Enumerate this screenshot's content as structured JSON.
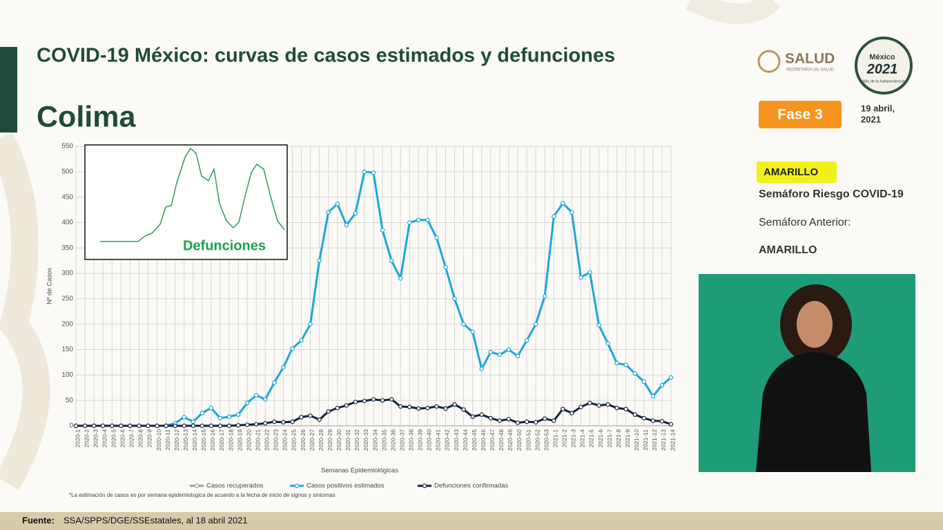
{
  "header": {
    "title": "COVID-19 México: curvas de casos estimados y defunciones",
    "state": "Colima",
    "logo_text": "SALUD",
    "logo_subtext": "SECRETARÍA DE SALUD",
    "emblem_top": "México",
    "emblem_year": "2021",
    "emblem_bottom": "Año de la Independencia"
  },
  "status": {
    "phase": "Fase 3",
    "date_line1": "19 abril,",
    "date_line2": "2021",
    "current": "AMARILLO",
    "current_label": "Semáforo Riesgo COVID-19",
    "previous_label": "Semáforo Anterior:",
    "previous": "AMARILLO"
  },
  "chart_data": {
    "type": "line",
    "x_label": "Semanas Epidemiológicas",
    "y_label": "Nº de Casos",
    "inset_title": "Defunciones",
    "footnote": "*La estimación de casos es por semana epidemiologica de acuerdo a la fecha de inicio de signos y síntomas",
    "categories": [
      "2020-1",
      "2020-2",
      "2020-3",
      "2020-4",
      "2020-5",
      "2020-6",
      "2020-7",
      "2020-8",
      "2020-9",
      "2020-10",
      "2020-11",
      "2020-12",
      "2020-13",
      "2020-14",
      "2020-15",
      "2020-16",
      "2020-17",
      "2020-18",
      "2020-19",
      "2020-20",
      "2020-21",
      "2020-22",
      "2020-23",
      "2020-24",
      "2020-25",
      "2020-26",
      "2020-27",
      "2020-28",
      "2020-29",
      "2020-30",
      "2020-31",
      "2020-32",
      "2020-33",
      "2020-34",
      "2020-35",
      "2020-36",
      "2020-37",
      "2020-38",
      "2020-39",
      "2020-40",
      "2020-41",
      "2020-42",
      "2020-43",
      "2020-44",
      "2020-45",
      "2020-46",
      "2020-47",
      "2020-48",
      "2020-49",
      "2020-50",
      "2020-51",
      "2020-52",
      "2020-53",
      "2021-1",
      "2021-2",
      "2021-3",
      "2021-4",
      "2021-5",
      "2021-6",
      "2021-7",
      "2021-8",
      "2021-9",
      "2021-10",
      "2021-11",
      "2021-12",
      "2021-13",
      "2021-14"
    ],
    "series": [
      {
        "name": "Casos recuperados",
        "color": "#9e9e9e",
        "values": [
          null,
          null,
          null,
          null,
          null,
          null,
          null,
          null,
          null,
          null,
          null,
          null,
          null,
          null,
          null,
          null,
          null,
          null,
          null,
          null,
          null,
          null,
          null,
          null,
          null,
          null,
          null,
          null,
          null,
          null,
          null,
          null,
          null,
          null,
          null,
          null,
          null,
          null,
          null,
          null,
          null,
          null,
          null,
          null,
          null,
          null,
          null,
          null,
          null,
          null,
          null,
          null,
          null,
          null,
          null,
          null,
          null,
          null,
          null,
          null,
          null,
          null,
          null,
          null,
          null,
          null,
          null
        ]
      },
      {
        "name": "Casos positivos estimados",
        "color": "#1ba6da",
        "values": [
          0,
          0,
          0,
          0,
          0,
          0,
          0,
          0,
          0,
          0,
          0,
          5,
          17,
          8,
          25,
          35,
          15,
          18,
          22,
          45,
          60,
          52,
          85,
          115,
          152,
          168,
          200,
          325,
          420,
          437,
          395,
          418,
          500,
          498,
          385,
          325,
          290,
          400,
          405,
          405,
          370,
          312,
          250,
          200,
          185,
          112,
          145,
          140,
          150,
          137,
          168,
          200,
          255,
          412,
          438,
          420,
          292,
          302,
          198,
          162,
          123,
          120,
          103,
          87,
          58,
          80,
          95
        ]
      },
      {
        "name": "Defunciones confirmadas",
        "color": "#14233f",
        "values": [
          0,
          0,
          0,
          0,
          0,
          0,
          0,
          0,
          0,
          0,
          0,
          0,
          0,
          0,
          0,
          0,
          0,
          0,
          1,
          2,
          3,
          5,
          8,
          7,
          8,
          17,
          20,
          12,
          28,
          35,
          40,
          47,
          49,
          52,
          50,
          52,
          38,
          37,
          34,
          35,
          38,
          34,
          42,
          32,
          18,
          22,
          15,
          10,
          13,
          6,
          8,
          7,
          14,
          10,
          33,
          25,
          37,
          45,
          40,
          42,
          35,
          33,
          22,
          15,
          10,
          9,
          3
        ]
      }
    ],
    "ylim": [
      0,
      550
    ],
    "yticks": [
      0,
      50,
      100,
      150,
      200,
      250,
      300,
      350,
      400,
      450,
      500,
      550
    ],
    "grid": true
  },
  "footer": {
    "source_label": "Fuente:",
    "source": "SSA/SPPS/DGE/SSEstatales, al 18 abril 2021"
  }
}
